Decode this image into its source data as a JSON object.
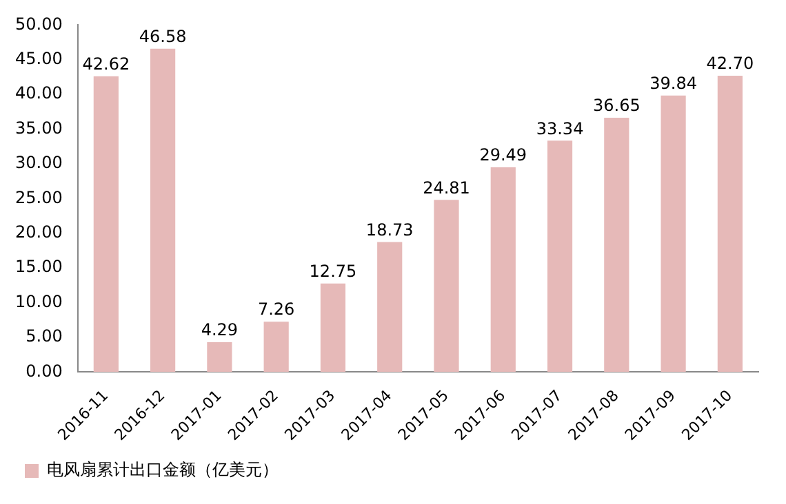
{
  "chart_data": {
    "type": "bar",
    "categories": [
      "2016-11",
      "2016-12",
      "2017-01",
      "2017-02",
      "2017-03",
      "2017-04",
      "2017-05",
      "2017-06",
      "2017-07",
      "2017-08",
      "2017-09",
      "2017-10"
    ],
    "series": [
      {
        "name": "电风扇累计出口金额（亿美元）",
        "color": "#e6b9b8",
        "values": [
          42.62,
          46.58,
          4.29,
          7.26,
          12.75,
          18.73,
          24.81,
          29.49,
          33.34,
          36.65,
          39.84,
          42.7
        ],
        "value_labels": [
          "42.62",
          "46.58",
          "4.29",
          "7.26",
          "12.75",
          "18.73",
          "24.81",
          "29.49",
          "33.34",
          "36.65",
          "39.84",
          "42.70"
        ]
      }
    ],
    "ylim": [
      0,
      50
    ],
    "yticks": [
      {
        "value": 0,
        "label": "0.00"
      },
      {
        "value": 5,
        "label": "5.00"
      },
      {
        "value": 10,
        "label": "10.00"
      },
      {
        "value": 15,
        "label": "15.00"
      },
      {
        "value": 20,
        "label": "20.00"
      },
      {
        "value": 25,
        "label": "25.00"
      },
      {
        "value": 30,
        "label": "30.00"
      },
      {
        "value": 35,
        "label": "35.00"
      },
      {
        "value": 40,
        "label": "40.00"
      },
      {
        "value": 45,
        "label": "45.00"
      },
      {
        "value": 50,
        "label": "50.00"
      }
    ],
    "grid": false,
    "legend": "bottom"
  }
}
